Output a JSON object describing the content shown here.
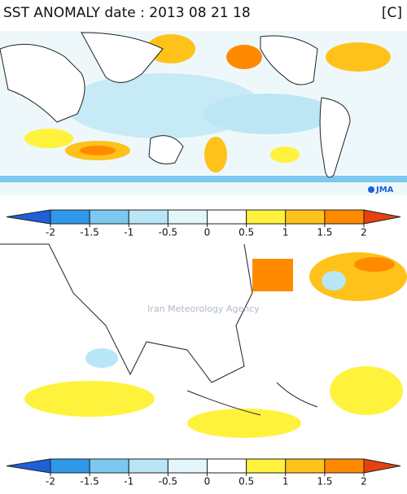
{
  "header": {
    "title": "SST ANOMALY date : 2013 08 21 18",
    "unit": "[C]"
  },
  "logo": "JMA",
  "watermark": "Iran Meteorology Agency",
  "colorbar": {
    "ticks": [
      -2,
      -1.5,
      -1,
      -0.5,
      0,
      0.5,
      1,
      1.5,
      2
    ],
    "colors": [
      "#1f5fd8",
      "#2f98e8",
      "#7cc8f0",
      "#b8e6f6",
      "#e2f6fb",
      "#ffffff",
      "#fff23c",
      "#ffc21a",
      "#ff8a00",
      "#e5420e"
    ]
  }
}
